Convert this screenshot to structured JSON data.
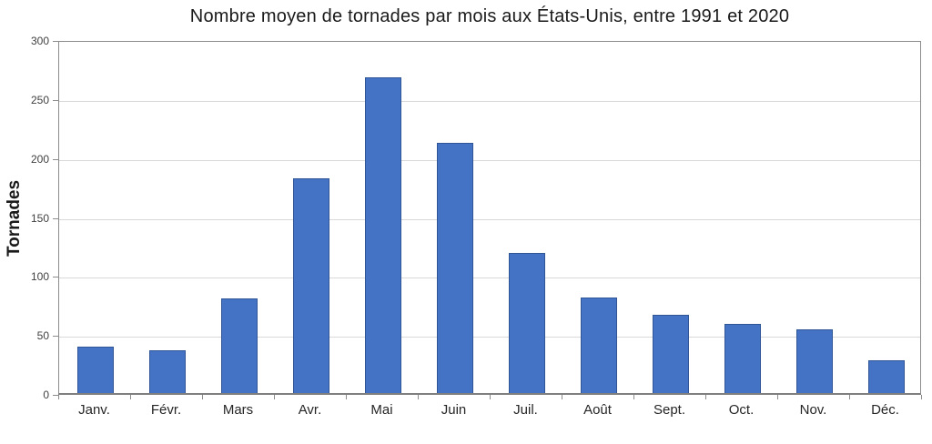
{
  "chart_data": {
    "type": "bar",
    "title": "Nombre moyen de tornades par mois aux États-Unis, entre 1991 et 2020",
    "ylabel": "Tornades",
    "xlabel": "",
    "categories": [
      "Janv.",
      "Févr.",
      "Mars",
      "Avr.",
      "Mai",
      "Juin",
      "Juil.",
      "Août",
      "Sept.",
      "Oct.",
      "Nov.",
      "Déc."
    ],
    "values": [
      39,
      36,
      80,
      182,
      268,
      212,
      119,
      81,
      66,
      59,
      54,
      28
    ],
    "ylim": [
      0,
      300
    ],
    "ytick_step": 50,
    "ytick_labels": [
      "0",
      "50",
      "100",
      "150",
      "200",
      "250",
      "300"
    ],
    "grid": true,
    "legend": false,
    "bar_color": "#4472C4",
    "bar_border_color": "#2F5597",
    "gridline_color": "#D9D9D9",
    "axis_color": "#8C8C8C",
    "title_color": "#1A1A1A",
    "tick_label_color": "#404040"
  }
}
